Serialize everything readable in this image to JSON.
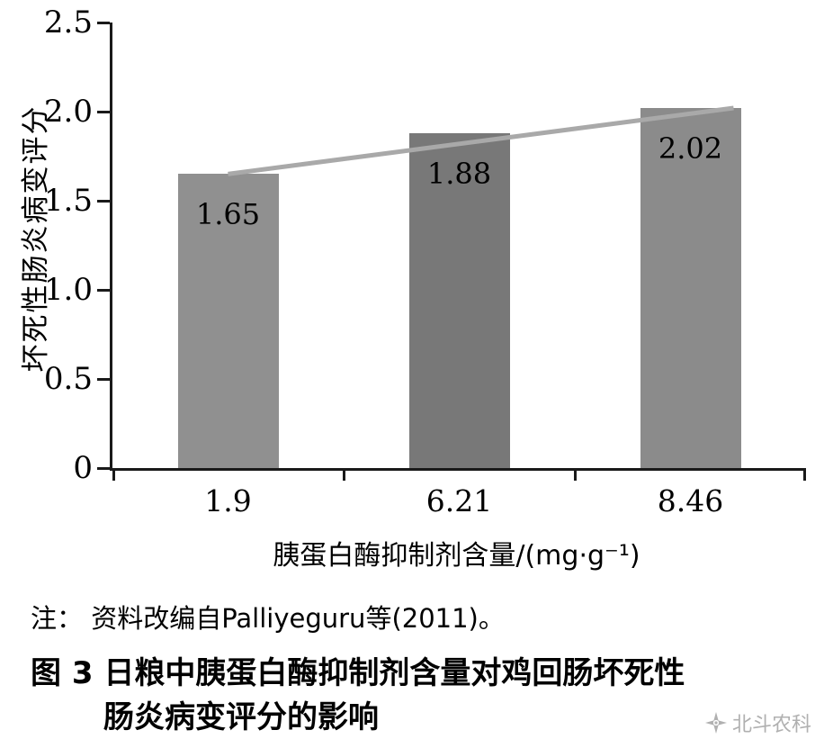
{
  "chart_data": {
    "type": "bar",
    "title": "",
    "categories": [
      "1.9",
      "6.21",
      "8.46"
    ],
    "values": [
      1.65,
      1.88,
      2.02
    ],
    "bar_labels": [
      "1.65",
      "1.88",
      "2.02"
    ],
    "ylabel": "坏死性肠炎病变评分",
    "xlabel": "胰蛋白酶抑制剂含量/(mg·g⁻¹)",
    "ylim": [
      0,
      2.5
    ],
    "ytick_step": 0.5,
    "yticks": [
      "0",
      "0.5",
      "1.0",
      "1.5",
      "2.0",
      "2.5"
    ],
    "grid": false,
    "legend": "none",
    "trendline": true,
    "bar_colors": [
      "#909090",
      "#787878",
      "#8b8b8b"
    ],
    "line_color": "#a9a9a9",
    "axis_color": "#1a1a1a"
  },
  "note": "注： 资料改编自Palliyeguru等(2011)。",
  "caption": {
    "line1": "图 3  日粮中胰蛋白酶抑制剂含量对鸡回肠坏死性",
    "line2": "肠炎病变评分的影响"
  },
  "watermark": {
    "label": "北斗农科",
    "icon": "compass-star-icon",
    "color": "#b0b0b0"
  }
}
